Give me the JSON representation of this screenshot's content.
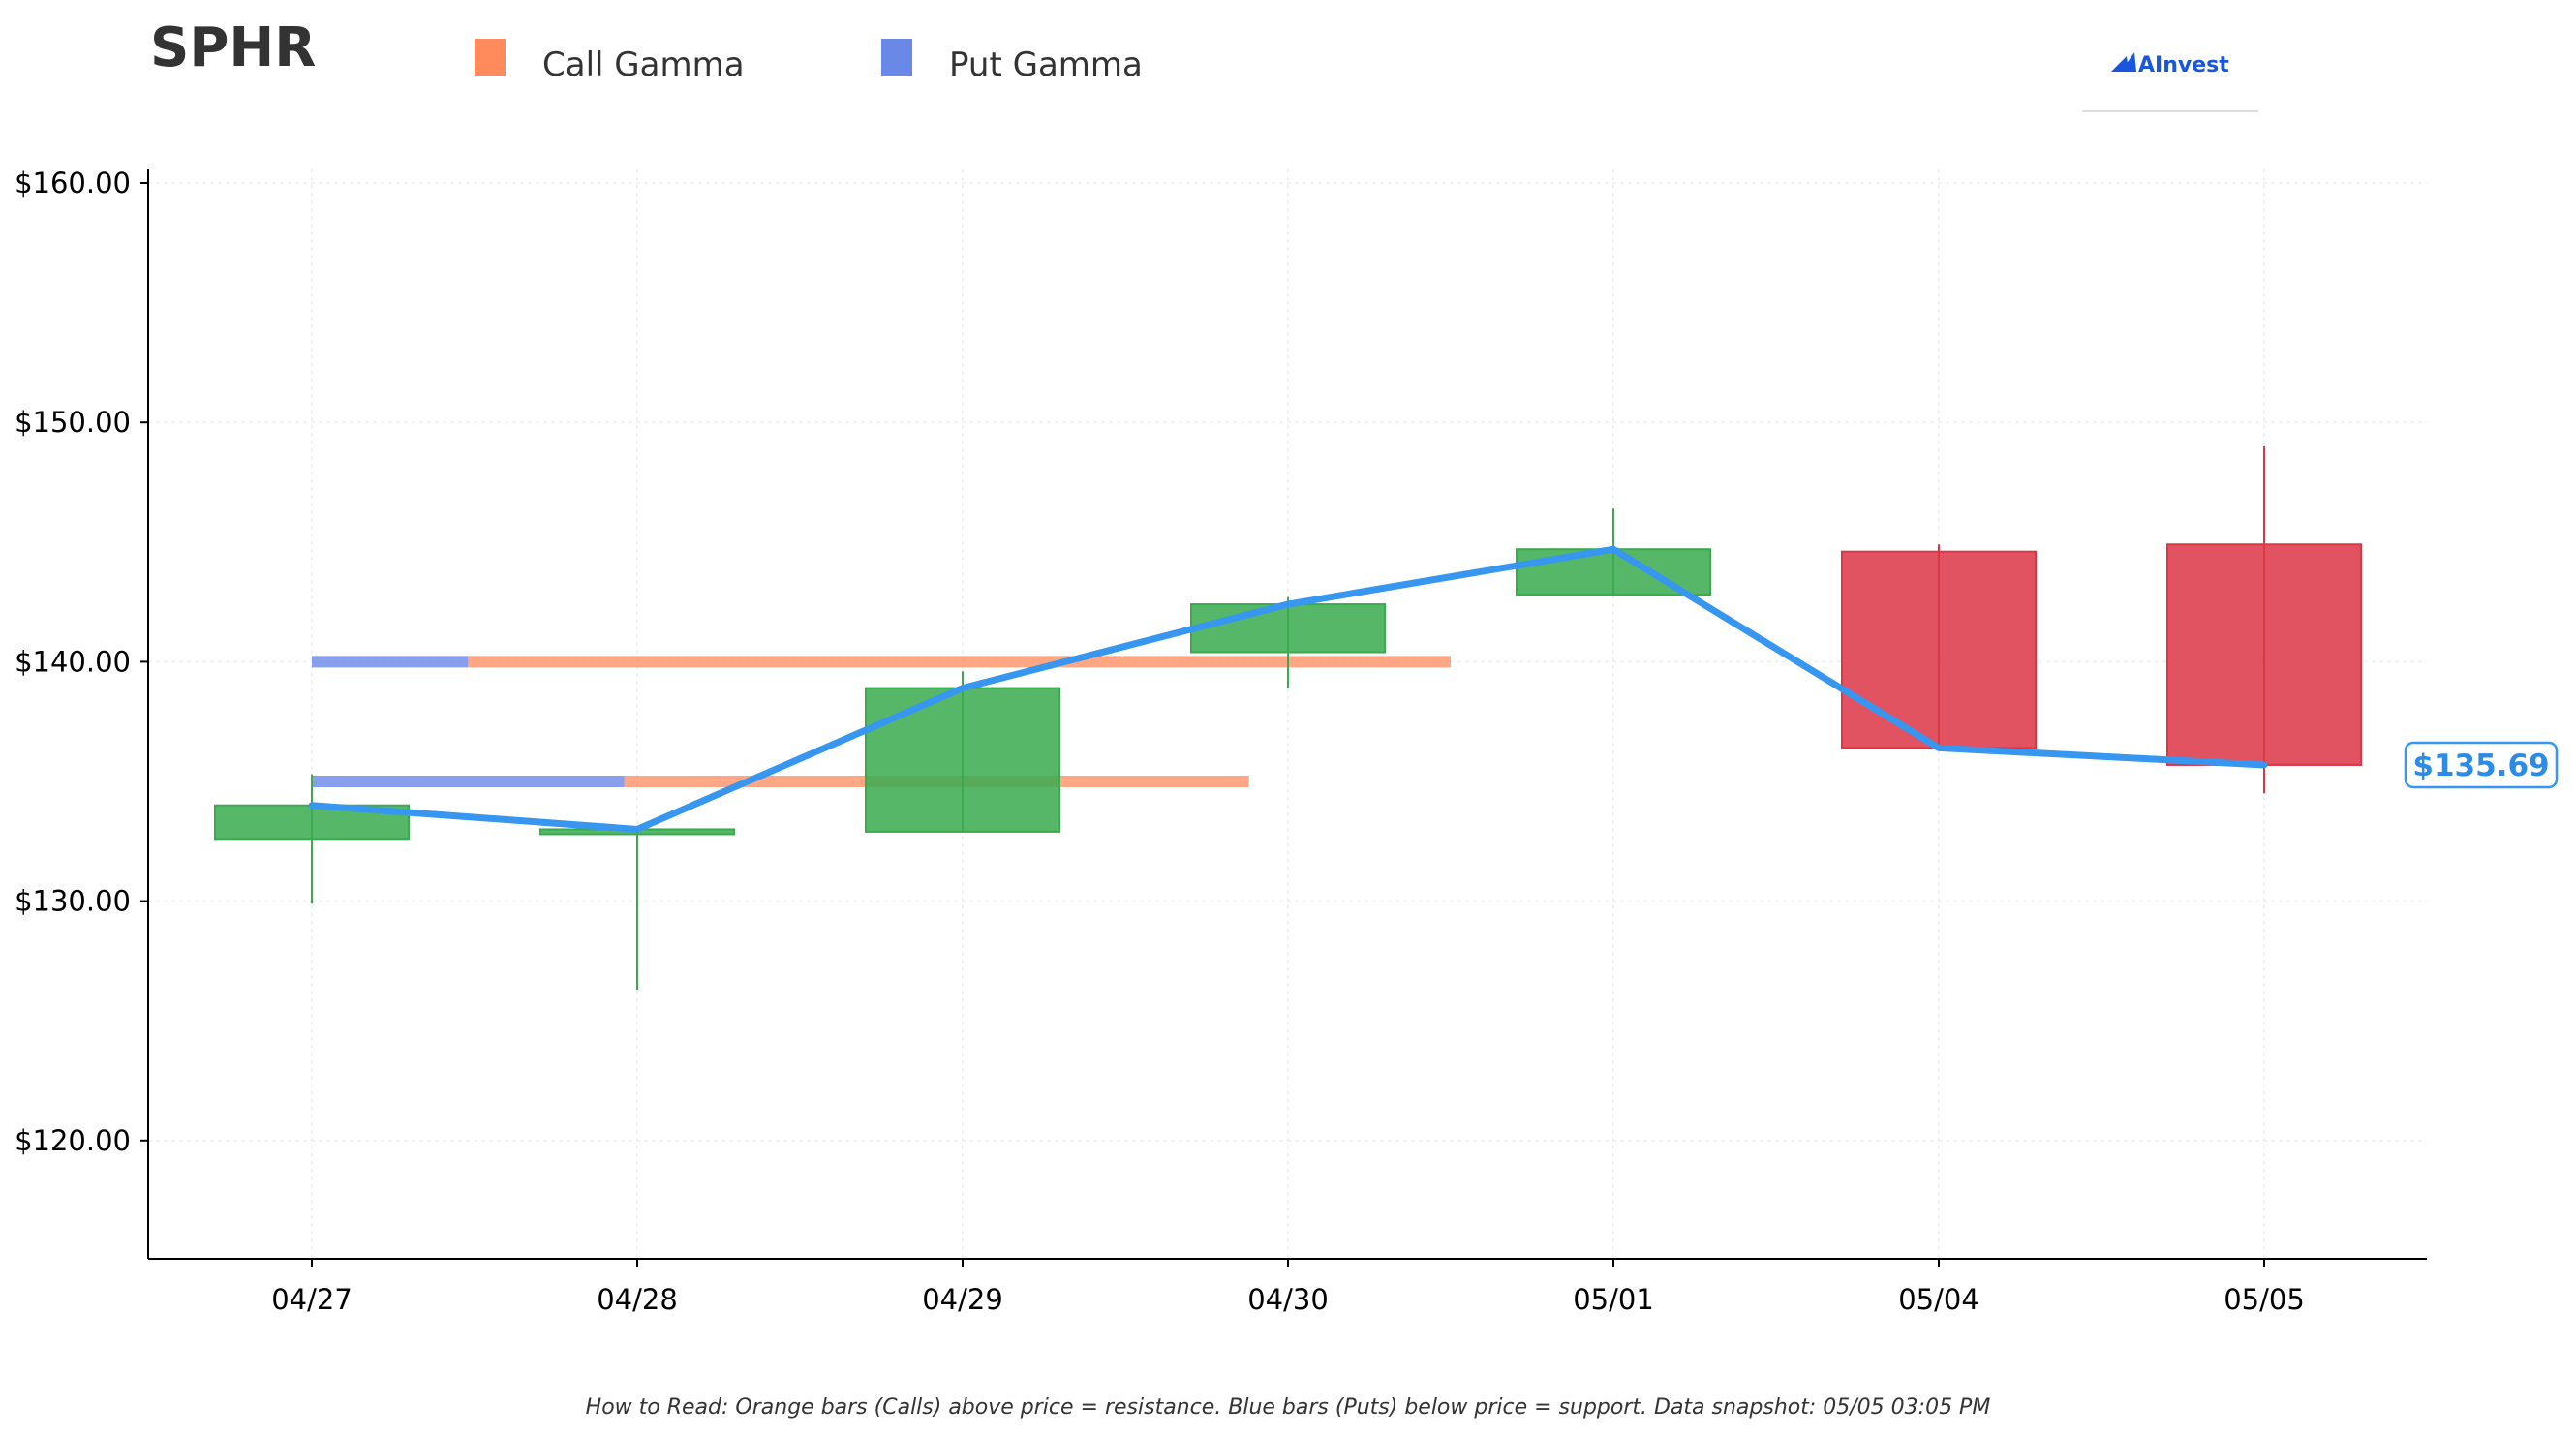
{
  "title": "SPHR",
  "brand": "AInvest",
  "footnote": "How to Read: Orange bars (Calls) above price = resistance. Blue bars (Puts) below price = support. Data snapshot: 05/05 03:05 PM",
  "last_price_label": "$135.69",
  "colors": {
    "up": "#3aaa4f",
    "down": "#dc3545",
    "price_line": "#3796f0",
    "call_gamma": "#ff8a5c",
    "put_gamma": "#6a88e8",
    "grid": "#eeeeee"
  },
  "legend": [
    {
      "label": "Call Gamma",
      "color": "#ff8a5c"
    },
    {
      "label": "Put Gamma",
      "color": "#6a88e8"
    }
  ],
  "chart_data": {
    "type": "candlestick",
    "categories": [
      "04/27",
      "04/28",
      "04/29",
      "04/30",
      "05/01",
      "05/04",
      "05/05"
    ],
    "ylim": [
      115,
      161
    ],
    "yticks": [
      120,
      130,
      140,
      150,
      160
    ],
    "ytick_labels": [
      "$120.00",
      "$130.00",
      "$140.00",
      "$150.00",
      "$160.00"
    ],
    "candles": [
      {
        "date": "04/27",
        "open": 132.6,
        "high": 135.3,
        "low": 129.9,
        "close": 134.0
      },
      {
        "date": "04/28",
        "open": 132.8,
        "high": 133.0,
        "low": 126.3,
        "close": 133.0
      },
      {
        "date": "04/29",
        "open": 132.9,
        "high": 139.6,
        "low": 132.9,
        "close": 138.9
      },
      {
        "date": "04/30",
        "open": 140.4,
        "high": 142.7,
        "low": 138.9,
        "close": 142.4
      },
      {
        "date": "05/01",
        "open": 142.8,
        "high": 146.4,
        "low": 142.8,
        "close": 144.7
      },
      {
        "date": "05/04",
        "open": 144.6,
        "high": 144.9,
        "low": 136.4,
        "close": 136.4
      },
      {
        "date": "05/05",
        "open": 144.9,
        "high": 149.0,
        "low": 134.5,
        "close": 135.69
      }
    ],
    "price_line": [
      134.0,
      133.0,
      138.9,
      142.4,
      144.7,
      136.4,
      135.69
    ],
    "gamma_levels": [
      {
        "strike": 140,
        "start": "04/27",
        "put_until": 0.48,
        "call_until": 3.5
      },
      {
        "strike": 135,
        "start": "04/27",
        "put_until": 0.96,
        "call_until": 2.88
      }
    ],
    "last_price": 135.69,
    "grid": true,
    "legend_position": "top"
  }
}
